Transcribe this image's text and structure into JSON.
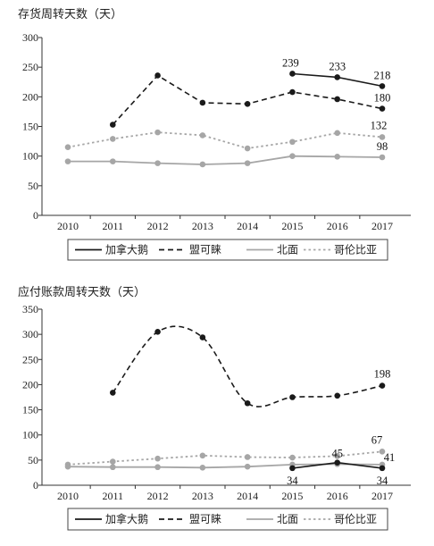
{
  "chart_data": [
    {
      "type": "line",
      "title": "存货周转天数（天）",
      "x": [
        "2010",
        "2011",
        "2012",
        "2013",
        "2014",
        "2015",
        "2016",
        "2017"
      ],
      "ylim": [
        0,
        300
      ],
      "yticks": [
        "0",
        "50",
        "100",
        "150",
        "200",
        "250",
        "300"
      ],
      "grid": false,
      "legend_position": "bottom",
      "series": [
        {
          "name": "加拿大鹅",
          "color": "#1a1a1a",
          "style": "solid",
          "values": [
            null,
            null,
            null,
            null,
            null,
            239,
            233,
            218
          ],
          "labels": [
            null,
            null,
            null,
            null,
            null,
            "239",
            "233",
            "218"
          ]
        },
        {
          "name": "盟可睐",
          "color": "#1a1a1a",
          "style": "dashed",
          "values": [
            null,
            153,
            236,
            190,
            188,
            208,
            196,
            180
          ],
          "labels": [
            null,
            null,
            null,
            null,
            null,
            null,
            null,
            "180"
          ]
        },
        {
          "name": "北面",
          "color": "#a6a6a6",
          "style": "solid",
          "values": [
            91,
            91,
            88,
            86,
            88,
            100,
            99,
            98
          ],
          "labels": [
            null,
            null,
            null,
            null,
            null,
            null,
            null,
            "98"
          ]
        },
        {
          "name": "哥伦比亚",
          "color": "#a6a6a6",
          "style": "dotted",
          "values": [
            115,
            129,
            140,
            135,
            113,
            124,
            139,
            132
          ],
          "labels": [
            null,
            null,
            null,
            null,
            null,
            null,
            null,
            "132"
          ]
        }
      ]
    },
    {
      "type": "line",
      "title": "应付账款周转天数（天）",
      "x": [
        "2010",
        "2011",
        "2012",
        "2013",
        "2014",
        "2015",
        "2016",
        "2017"
      ],
      "ylim": [
        0,
        350
      ],
      "yticks": [
        "0",
        "50",
        "100",
        "150",
        "200",
        "250",
        "300",
        "350"
      ],
      "grid": false,
      "legend_position": "bottom",
      "series": [
        {
          "name": "加拿大鹅",
          "color": "#1a1a1a",
          "style": "solid",
          "values": [
            null,
            null,
            null,
            null,
            null,
            34,
            45,
            34
          ],
          "labels": [
            null,
            null,
            null,
            null,
            null,
            "34",
            "45",
            "34"
          ]
        },
        {
          "name": "盟可睐",
          "color": "#1a1a1a",
          "style": "dashed",
          "values": [
            null,
            184,
            305,
            294,
            163,
            175,
            178,
            198
          ],
          "labels": [
            null,
            null,
            null,
            null,
            null,
            null,
            null,
            "198"
          ]
        },
        {
          "name": "北面",
          "color": "#a6a6a6",
          "style": "solid",
          "values": [
            37,
            36,
            36,
            35,
            37,
            41,
            42,
            41
          ],
          "labels": [
            null,
            null,
            null,
            null,
            null,
            null,
            null,
            "41"
          ]
        },
        {
          "name": "哥伦比亚",
          "color": "#a6a6a6",
          "style": "dotted",
          "values": [
            41,
            47,
            53,
            59,
            56,
            55,
            58,
            67
          ],
          "labels": [
            null,
            null,
            null,
            null,
            null,
            null,
            null,
            "67"
          ]
        }
      ]
    }
  ]
}
